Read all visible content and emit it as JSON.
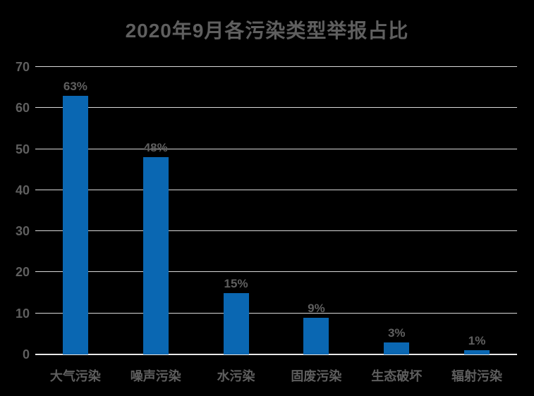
{
  "title": "2020年9月各污染类型举报占比",
  "chart_data": {
    "type": "bar",
    "title": "2020年9月各污染类型举报占比",
    "categories": [
      "大气污染",
      "噪声污染",
      "水污染",
      "固废污染",
      "生态破坏",
      "辐射污染"
    ],
    "values": [
      63,
      48,
      15,
      9,
      3,
      1
    ],
    "data_labels": [
      "63%",
      "48%",
      "15%",
      "9%",
      "3%",
      "1%"
    ],
    "xlabel": "",
    "ylabel": "",
    "y_ticks": [
      0,
      10,
      20,
      30,
      40,
      50,
      60,
      70
    ],
    "ylim": [
      0,
      70
    ],
    "grid": "horizontal",
    "legend": "none",
    "unit": "percent"
  },
  "colors": {
    "background": "#000000",
    "bar": "#0a67b2",
    "gridline": "#d9d9d9",
    "axis_line": "#e8e8e8",
    "text": "#5f5f5f"
  }
}
